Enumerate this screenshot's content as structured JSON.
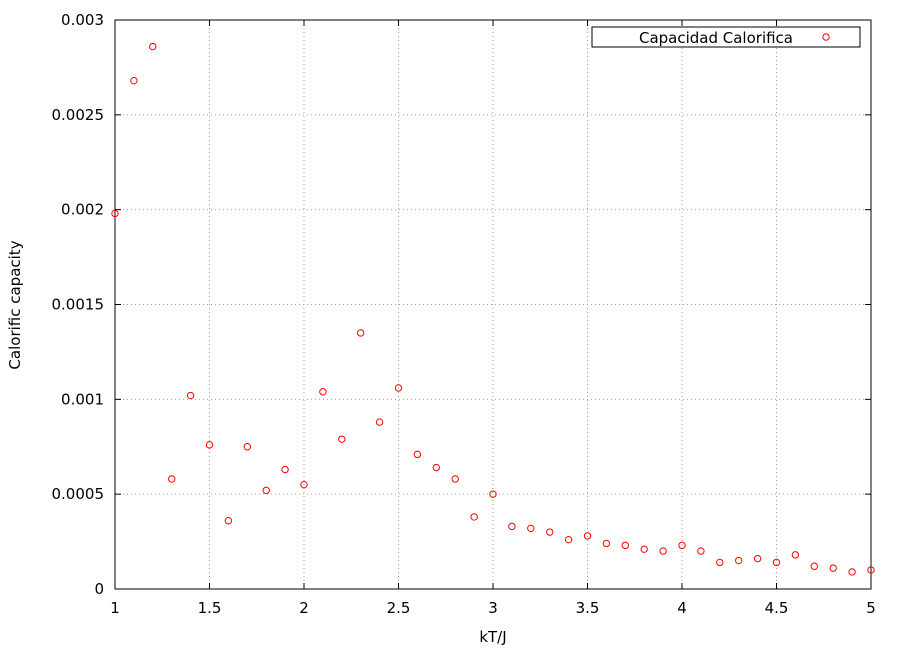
{
  "chart_data": {
    "type": "scatter",
    "title": "",
    "xlabel": "kT/J",
    "ylabel": "Calorific capacity",
    "xlim": [
      1,
      5
    ],
    "ylim": [
      0,
      0.003
    ],
    "x_ticks": [
      "1",
      "1.5",
      "2",
      "2.5",
      "3",
      "3.5",
      "4",
      "4.5",
      "5"
    ],
    "y_ticks": [
      "0",
      "0.0005",
      "0.001",
      "0.0015",
      "0.002",
      "0.0025",
      "0.003"
    ],
    "grid": true,
    "legend_position": "top-right",
    "colors": {
      "series": "#ff0000",
      "axis": "#000000",
      "grid": "#a0a0a0"
    },
    "series": [
      {
        "name": "Capacidad Calorifica",
        "marker": "open-circle",
        "x": [
          1.0,
          1.1,
          1.2,
          1.3,
          1.4,
          1.5,
          1.6,
          1.7,
          1.8,
          1.9,
          2.0,
          2.1,
          2.2,
          2.3,
          2.4,
          2.5,
          2.6,
          2.7,
          2.8,
          2.9,
          3.0,
          3.1,
          3.2,
          3.3,
          3.4,
          3.5,
          3.6,
          3.7,
          3.8,
          3.9,
          4.0,
          4.1,
          4.2,
          4.3,
          4.4,
          4.5,
          4.6,
          4.7,
          4.8,
          4.9,
          5.0
        ],
        "y": [
          0.00198,
          0.00268,
          0.00286,
          0.00058,
          0.00102,
          0.00076,
          0.00036,
          0.00075,
          0.00052,
          0.00063,
          0.00055,
          0.00104,
          0.00079,
          0.00135,
          0.00088,
          0.00106,
          0.00071,
          0.00064,
          0.00058,
          0.00038,
          0.0005,
          0.00033,
          0.00032,
          0.0003,
          0.00026,
          0.00028,
          0.00024,
          0.00023,
          0.00021,
          0.0002,
          0.00023,
          0.0002,
          0.00014,
          0.00015,
          0.00016,
          0.00014,
          0.00018,
          0.00012,
          0.00011,
          9e-05,
          0.0001
        ]
      }
    ]
  }
}
